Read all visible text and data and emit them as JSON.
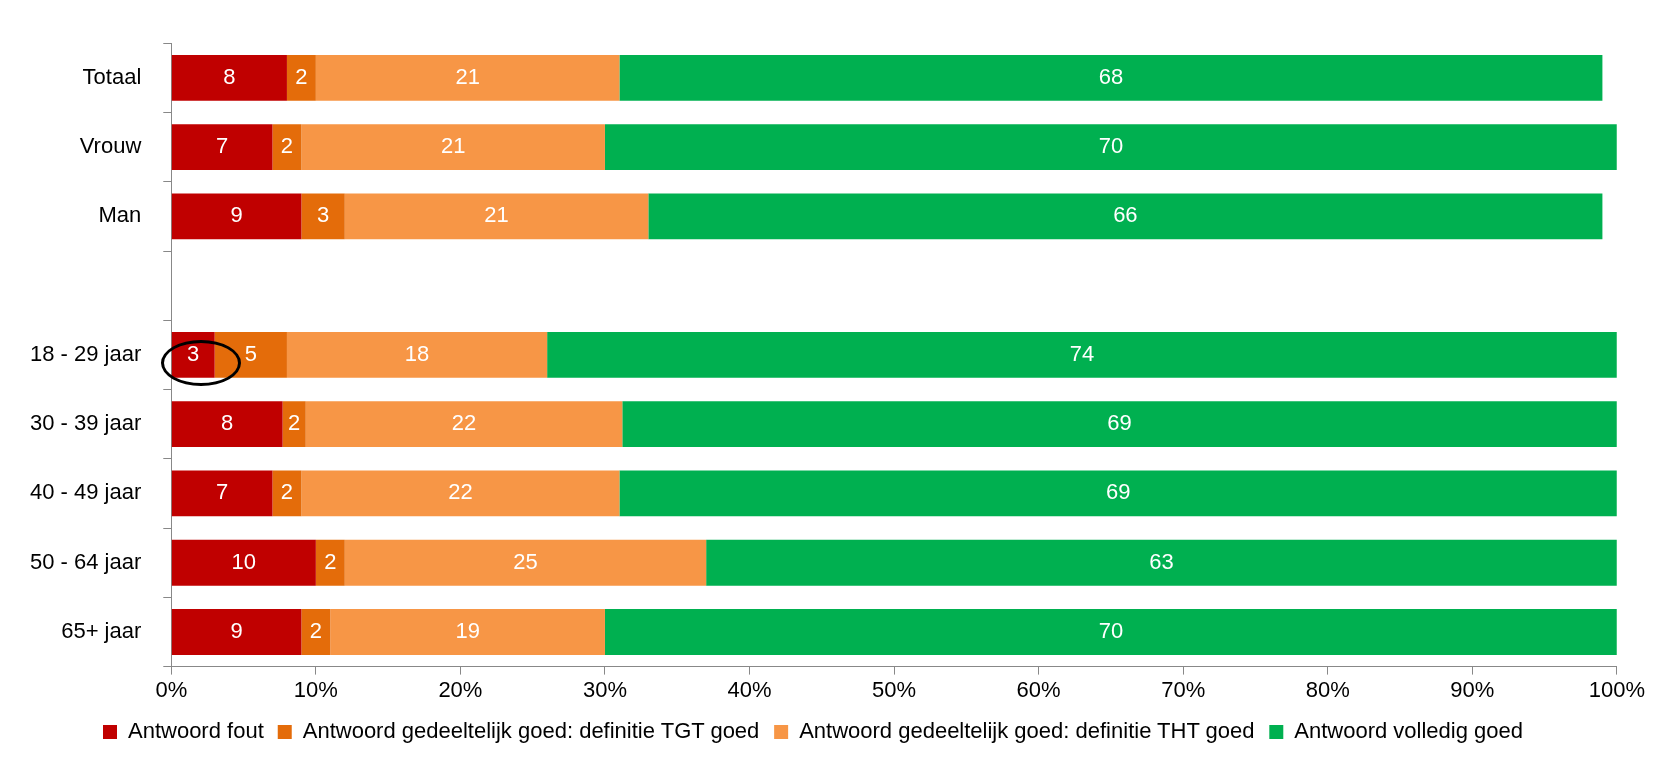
{
  "chart_data": {
    "type": "bar",
    "orientation": "horizontal",
    "stacked": true,
    "grid": false,
    "legend": "bottom",
    "categories": [
      "Totaal",
      "Vrouw",
      "Man",
      null,
      "18 - 29 jaar",
      "30 - 39 jaar",
      "40 - 49 jaar",
      "50 - 64 jaar",
      "65+ jaar"
    ],
    "series": [
      {
        "name": "Antwoord fout",
        "color": "#c00000",
        "values": [
          8,
          7,
          9,
          null,
          3,
          7.7,
          7,
          10,
          9
        ],
        "value_labels": [
          "8",
          "7",
          "9",
          null,
          "3",
          "8",
          "7",
          "10",
          "9"
        ]
      },
      {
        "name": "Antwoord gedeeltelijk goed: definitie TGT goed",
        "color": "#e46c0a",
        "values": [
          2,
          2,
          3,
          null,
          5,
          1.6,
          2,
          2,
          2
        ],
        "value_labels": [
          "2",
          "2",
          "3",
          null,
          "5",
          "2",
          "2",
          "2",
          "2"
        ]
      },
      {
        "name": "Antwoord gedeeltelijk goed: definitie THT goed",
        "color": "#f79646",
        "values": [
          21,
          21,
          21,
          null,
          18,
          21.9,
          22,
          25,
          19
        ],
        "value_labels": [
          "21",
          "21",
          "21",
          null,
          "18",
          "22",
          "22",
          "25",
          "19"
        ]
      },
      {
        "name": "Antwoord volledig goed",
        "color": "#00b050",
        "values": [
          68,
          70,
          66,
          null,
          74,
          68.8,
          69,
          63,
          70
        ],
        "value_labels": [
          "68",
          "70",
          "66",
          null,
          "74",
          "69",
          "69",
          "63",
          "70"
        ]
      }
    ],
    "xlim": [
      0,
      100
    ],
    "xticks": [
      {
        "value": 0,
        "label": "0%"
      },
      {
        "value": 10,
        "label": "10%"
      },
      {
        "value": 20,
        "label": "20%"
      },
      {
        "value": 30,
        "label": "30%"
      },
      {
        "value": 40,
        "label": "40%"
      },
      {
        "value": 50,
        "label": "50%"
      },
      {
        "value": 60,
        "label": "60%"
      },
      {
        "value": 70,
        "label": "70%"
      },
      {
        "value": 80,
        "label": "80%"
      },
      {
        "value": 90,
        "label": "90%"
      },
      {
        "value": 100,
        "label": "100%"
      }
    ]
  }
}
